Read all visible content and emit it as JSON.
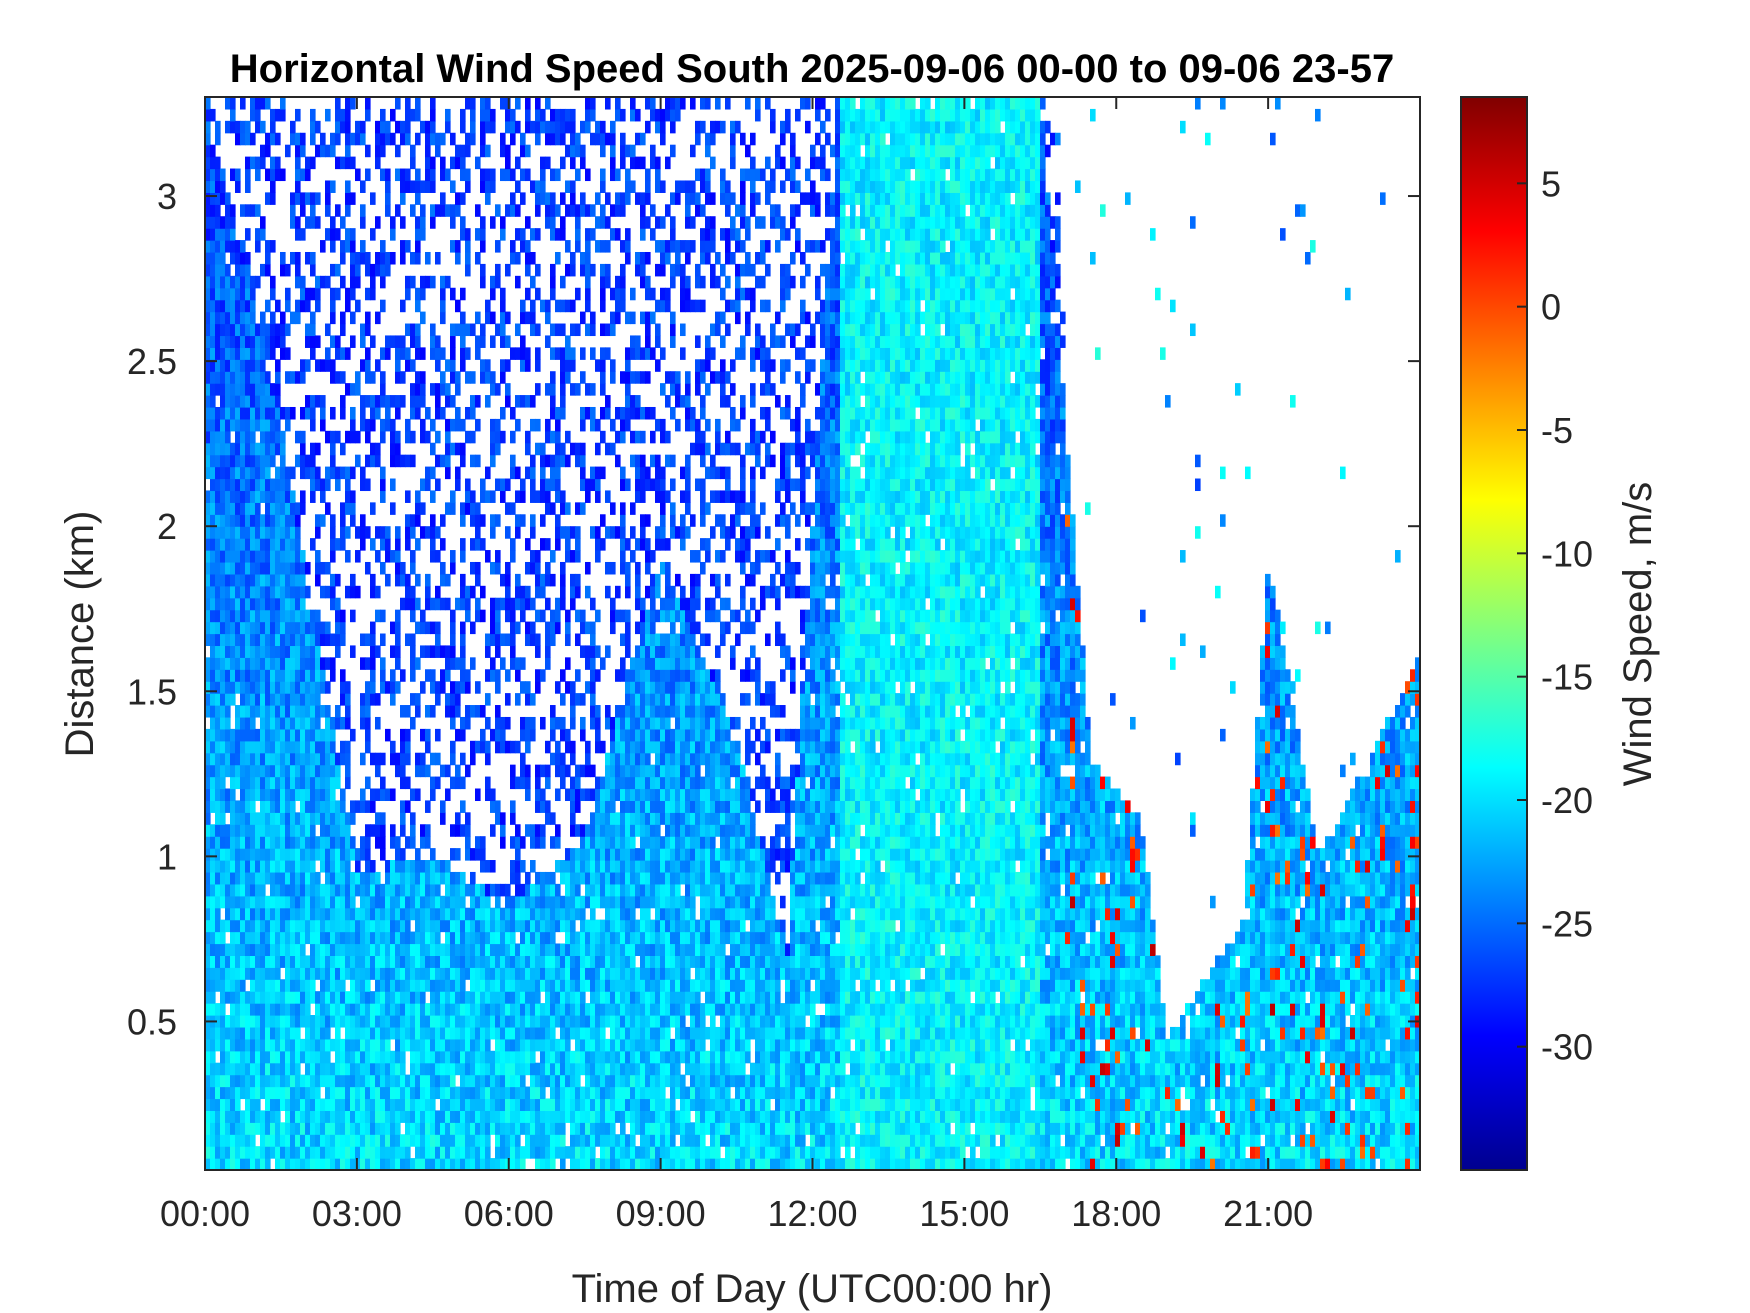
{
  "chart_data": {
    "type": "heatmap",
    "title": "Horizontal Wind Speed South 2025-09-06 00-00 to 09-06 23-57",
    "xlabel": "Time of Day (UTC00:00 hr)",
    "ylabel": "Distance (km)",
    "colorbar_label": "Wind Speed, m/s",
    "xlim_hours": [
      0,
      24
    ],
    "ylim_km": [
      0.05,
      3.3
    ],
    "x_ticks": [
      {
        "hour": 0,
        "label": "00:00"
      },
      {
        "hour": 3,
        "label": "03:00"
      },
      {
        "hour": 6,
        "label": "06:00"
      },
      {
        "hour": 9,
        "label": "09:00"
      },
      {
        "hour": 12,
        "label": "12:00"
      },
      {
        "hour": 15,
        "label": "15:00"
      },
      {
        "hour": 18,
        "label": "18:00"
      },
      {
        "hour": 21,
        "label": "21:00"
      }
    ],
    "y_ticks": [
      {
        "km": 0.5,
        "label": "0.5"
      },
      {
        "km": 1,
        "label": "1"
      },
      {
        "km": 1.5,
        "label": "1.5"
      },
      {
        "km": 2,
        "label": "2"
      },
      {
        "km": 2.5,
        "label": "2.5"
      },
      {
        "km": 3,
        "label": "3"
      }
    ],
    "clim": [
      -35,
      8.5
    ],
    "colorbar_ticks": [
      {
        "value": 5,
        "label": "5"
      },
      {
        "value": 0,
        "label": "0"
      },
      {
        "value": -5,
        "label": "-5"
      },
      {
        "value": -10,
        "label": "-10"
      },
      {
        "value": -15,
        "label": "-15"
      },
      {
        "value": -20,
        "label": "-20"
      },
      {
        "value": -25,
        "label": "-25"
      },
      {
        "value": -30,
        "label": "-30"
      }
    ],
    "colormap": "jet",
    "grid": false,
    "approx_field": {
      "description_hours": [
        0,
        24
      ],
      "low_level_speed": -20,
      "upper_level_speed": -27,
      "data_top_km_by_hour": [
        {
          "hour": 0,
          "km": 3.3
        },
        {
          "hour": 1.5,
          "km": 2.3
        },
        {
          "hour": 3,
          "km": 0.95
        },
        {
          "hour": 4.5,
          "km": 1.0
        },
        {
          "hour": 6,
          "km": 0.85
        },
        {
          "hour": 7.5,
          "km": 1.05
        },
        {
          "hour": 9,
          "km": 1.9
        },
        {
          "hour": 10.5,
          "km": 1.35
        },
        {
          "hour": 11.5,
          "km": 0.7
        },
        {
          "hour": 12.5,
          "km": 3.3
        },
        {
          "hour": 16.5,
          "km": 3.3
        },
        {
          "hour": 17.5,
          "km": 1.3
        },
        {
          "hour": 18.5,
          "km": 1.1
        },
        {
          "hour": 19,
          "km": 0.45
        },
        {
          "hour": 20.5,
          "km": 0.8
        },
        {
          "hour": 21,
          "km": 1.9
        },
        {
          "hour": 22,
          "km": 1.0
        },
        {
          "hour": 24,
          "km": 1.6
        }
      ],
      "upper_layer_top_km_by_hour": [
        {
          "hour": 0,
          "km": 3.3
        },
        {
          "hour": 3,
          "km": 3.3
        },
        {
          "hour": 6,
          "km": 3.3
        },
        {
          "hour": 9,
          "km": 3.3
        },
        {
          "hour": 12,
          "km": 3.3
        },
        {
          "hour": 16.8,
          "km": 3.3
        },
        {
          "hour": 17.5,
          "km": 0
        }
      ]
    }
  }
}
